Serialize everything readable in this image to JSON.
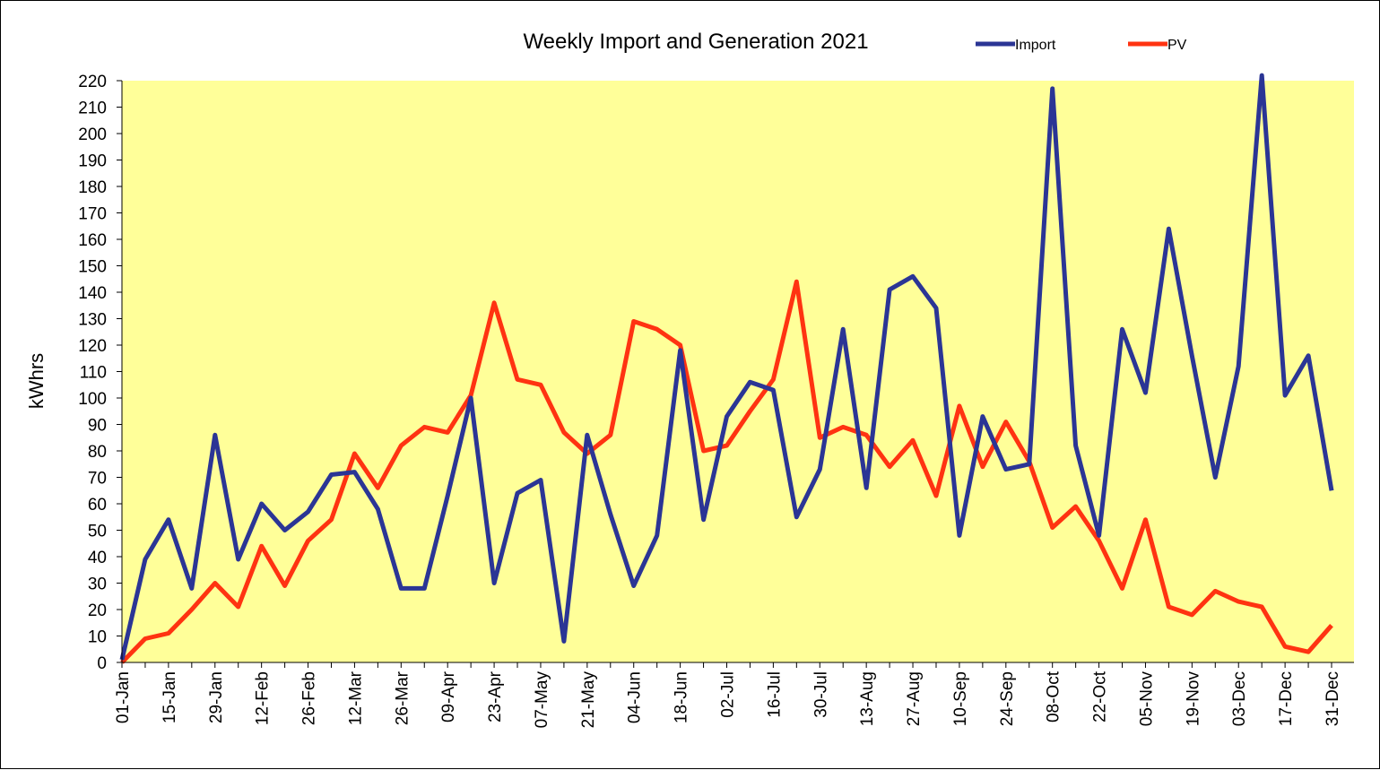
{
  "chart_data": {
    "type": "line",
    "title": "Weekly Import and Generation 2021",
    "ylabel": "kWhrs",
    "xlabel": "",
    "ylim": [
      0,
      220
    ],
    "y_tick_step": 10,
    "grid": false,
    "legend": "top-right",
    "plot_background": "#FFFF99",
    "x_tick_labels": [
      "01-Jan",
      "15-Jan",
      "29-Jan",
      "12-Feb",
      "26-Feb",
      "12-Mar",
      "26-Mar",
      "09-Apr",
      "23-Apr",
      "07-May",
      "21-May",
      "04-Jun",
      "18-Jun",
      "02-Jul",
      "16-Jul",
      "30-Jul",
      "13-Aug",
      "27-Aug",
      "10-Sep",
      "24-Sep",
      "08-Oct",
      "22-Oct",
      "05-Nov",
      "19-Nov",
      "03-Dec",
      "17-Dec",
      "31-Dec"
    ],
    "series": [
      {
        "name": "Import",
        "color": "#2B3595",
        "values": [
          1,
          39,
          54,
          28,
          86,
          39,
          60,
          50,
          57,
          71,
          72,
          58,
          28,
          28,
          63,
          100,
          30,
          64,
          69,
          8,
          86,
          56,
          29,
          48,
          118,
          54,
          93,
          106,
          103,
          55,
          73,
          126,
          66,
          141,
          146,
          134,
          48,
          93,
          73,
          75,
          217,
          82,
          48,
          126,
          102,
          164,
          116,
          70,
          112,
          222,
          101,
          116,
          65
        ]
      },
      {
        "name": "PV",
        "color": "#FF3311",
        "values": [
          0,
          9,
          11,
          20,
          30,
          21,
          44,
          29,
          46,
          54,
          79,
          66,
          82,
          89,
          87,
          101,
          136,
          107,
          105,
          87,
          79,
          86,
          129,
          126,
          120,
          80,
          82,
          95,
          107,
          144,
          85,
          89,
          86,
          74,
          84,
          63,
          97,
          74,
          91,
          76,
          51,
          59,
          46,
          28,
          54,
          21,
          18,
          27,
          23,
          21,
          6,
          4,
          14
        ]
      }
    ]
  }
}
